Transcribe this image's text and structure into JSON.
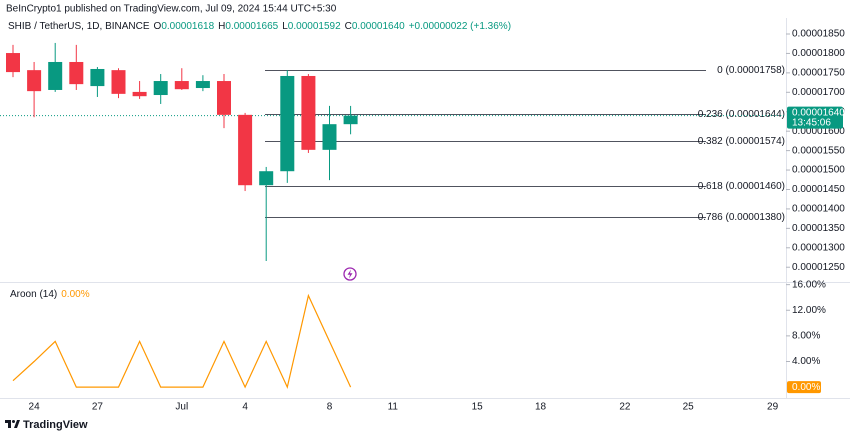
{
  "header": {
    "publisher": "BeInCrypto1 published on TradingView.com, Jul 09, 2024 15:44 UTC+5:30"
  },
  "chart_data": [
    {
      "type": "candlestick",
      "symbol": "SHIB / TetherUS, 1D, BINANCE",
      "ohlc_legend": [
        {
          "label": "O",
          "value": "0.00001618"
        },
        {
          "label": "H",
          "value": "0.00001665"
        },
        {
          "label": "L",
          "value": "0.00001592"
        },
        {
          "label": "C",
          "value": "0.00001640"
        }
      ],
      "change": "+0.00000022 (+1.36%)",
      "categories": [
        null,
        "24",
        null,
        null,
        "27",
        null,
        null,
        null,
        "Jul",
        null,
        null,
        "4",
        null,
        null,
        null,
        "8",
        null,
        null,
        "11",
        null,
        null,
        null,
        "15",
        null,
        null,
        "18",
        null,
        null,
        null,
        "22",
        null,
        null,
        "25",
        null,
        null,
        null,
        "29"
      ],
      "open": [
        1.801e-05,
        1.757e-05,
        1.706e-05,
        1.778e-05,
        1.716e-05,
        1.757e-05,
        1.701e-05,
        1.693e-05,
        1.729e-05,
        1.711e-05,
        1.729e-05,
        1.642e-05,
        1.461e-05,
        1.497e-05,
        1.742e-05,
        1.552e-05,
        1.618e-05,
        null,
        null,
        null,
        null,
        null,
        null,
        null,
        null,
        null,
        null,
        null,
        null,
        null,
        null,
        null,
        null,
        null,
        null,
        null,
        null
      ],
      "high": [
        1.822e-05,
        1.778e-05,
        1.827e-05,
        1.822e-05,
        1.765e-05,
        1.762e-05,
        1.729e-05,
        1.747e-05,
        1.762e-05,
        1.744e-05,
        1.747e-05,
        1.647e-05,
        1.508e-05,
        1.757e-05,
        1.747e-05,
        1.665e-05,
        1.665e-05,
        null,
        null,
        null,
        null,
        null,
        null,
        null,
        null,
        null,
        null,
        null,
        null,
        null,
        null,
        null,
        null,
        null,
        null,
        null,
        null
      ],
      "low": [
        1.739e-05,
        1.636e-05,
        1.701e-05,
        1.706e-05,
        1.688e-05,
        1.685e-05,
        1.683e-05,
        1.67e-05,
        1.706e-05,
        1.703e-05,
        1.608e-05,
        1.446e-05,
        1.266e-05,
        1.467e-05,
        1.544e-05,
        1.474e-05,
        1.592e-05,
        null,
        null,
        null,
        null,
        null,
        null,
        null,
        null,
        null,
        null,
        null,
        null,
        null,
        null,
        null,
        null,
        null,
        null,
        null,
        null
      ],
      "close": [
        1.752e-05,
        1.703e-05,
        1.778e-05,
        1.721e-05,
        1.76e-05,
        1.696e-05,
        1.69e-05,
        1.729e-05,
        1.708e-05,
        1.729e-05,
        1.642e-05,
        1.461e-05,
        1.497e-05,
        1.742e-05,
        1.552e-05,
        1.618e-05,
        1.64e-05,
        null,
        null,
        null,
        null,
        null,
        null,
        null,
        null,
        null,
        null,
        null,
        null,
        null,
        null,
        null,
        null,
        null,
        null,
        null,
        null
      ],
      "up_color": "#089981",
      "down_color": "#f23645",
      "ylim": [
        1.212e-05,
        1.886e-05
      ],
      "yticks": [
        {
          "value": 1.85e-05,
          "label": "0.00001850"
        },
        {
          "value": 1.8e-05,
          "label": "0.00001800"
        },
        {
          "value": 1.75e-05,
          "label": "0.00001750"
        },
        {
          "value": 1.7e-05,
          "label": "0.00001700"
        },
        {
          "value": 1.65e-05,
          "label": "0.00001650"
        },
        {
          "value": 1.6e-05,
          "label": "0.00001600"
        },
        {
          "value": 1.55e-05,
          "label": "0.00001550"
        },
        {
          "value": 1.5e-05,
          "label": "0.00001500"
        },
        {
          "value": 1.45e-05,
          "label": "0.00001450"
        },
        {
          "value": 1.4e-05,
          "label": "0.00001400"
        },
        {
          "value": 1.35e-05,
          "label": "0.00001350"
        },
        {
          "value": 1.3e-05,
          "label": "0.00001300"
        },
        {
          "value": 1.25e-05,
          "label": "0.00001250"
        }
      ],
      "fib_levels": [
        {
          "value": 1.758e-05,
          "label": "0 (0.00001758)"
        },
        {
          "value": 1.644e-05,
          "label": "0.236 (0.00001644)"
        },
        {
          "value": 1.574e-05,
          "label": "0.382 (0.00001574)"
        },
        {
          "value": 1.46e-05,
          "label": "0.618 (0.00001460)"
        },
        {
          "value": 1.38e-05,
          "label": "0.786 (0.00001380)"
        }
      ],
      "last_price": {
        "value": 1.64e-05,
        "label": "0.00001640"
      },
      "countdown": "13:45:06"
    },
    {
      "type": "line",
      "title": "Aroon (14)",
      "color": "#ff9800",
      "values": [
        1,
        4,
        7.14,
        0,
        0,
        0,
        7.14,
        0,
        0,
        0,
        7.14,
        0,
        7.14,
        0,
        14.29,
        7.14,
        0,
        null,
        null,
        null,
        null,
        null,
        null,
        null,
        null,
        null,
        null,
        null,
        null,
        null,
        null,
        null,
        null,
        null,
        null,
        null,
        null
      ],
      "last_value_label": "0.00%",
      "ylim": [
        -1.7,
        16.1
      ],
      "yticks": [
        {
          "value": 16,
          "label": "16.00%"
        },
        {
          "value": 12,
          "label": "12.00%"
        },
        {
          "value": 8,
          "label": "8.00%"
        },
        {
          "value": 4,
          "label": "4.00%"
        }
      ]
    }
  ],
  "footer": {
    "brand": "TradingView"
  }
}
